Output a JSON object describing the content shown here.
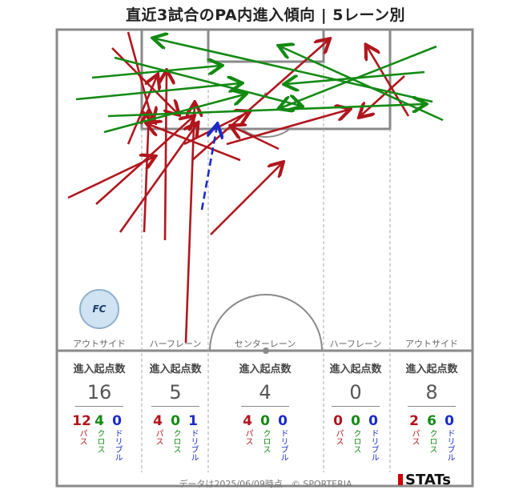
{
  "title": "直近3試合のPA内進入傾向 | 5レーン別",
  "lanes": [
    {
      "label": "アウトサイド",
      "head": "進入起点数",
      "total": "16",
      "pass": "12",
      "cross": "4",
      "dribble": "0"
    },
    {
      "label": "ハーフレーン",
      "head": "進入起点数",
      "total": "5",
      "pass": "4",
      "cross": "0",
      "dribble": "1"
    },
    {
      "label": "センターレーン",
      "head": "進入起点数",
      "total": "4",
      "pass": "4",
      "cross": "0",
      "dribble": "0"
    },
    {
      "label": "ハーフレーン",
      "head": "進入起点数",
      "total": "0",
      "pass": "0",
      "cross": "0",
      "dribble": "0"
    },
    {
      "label": "アウトサイド",
      "head": "進入起点数",
      "total": "8",
      "pass": "2",
      "cross": "6",
      "dribble": "0"
    }
  ],
  "labels": {
    "pass": "パス",
    "cross": "クロス",
    "dribble": "ドリブル"
  },
  "footer": "データは2025/06/09時点　© SPORTERIA",
  "brand": "STATs",
  "logo_text": "FC Osaka",
  "colors": {
    "pass": "#b0161c",
    "cross": "#138a13",
    "dribble": "#1a2bc9"
  }
}
